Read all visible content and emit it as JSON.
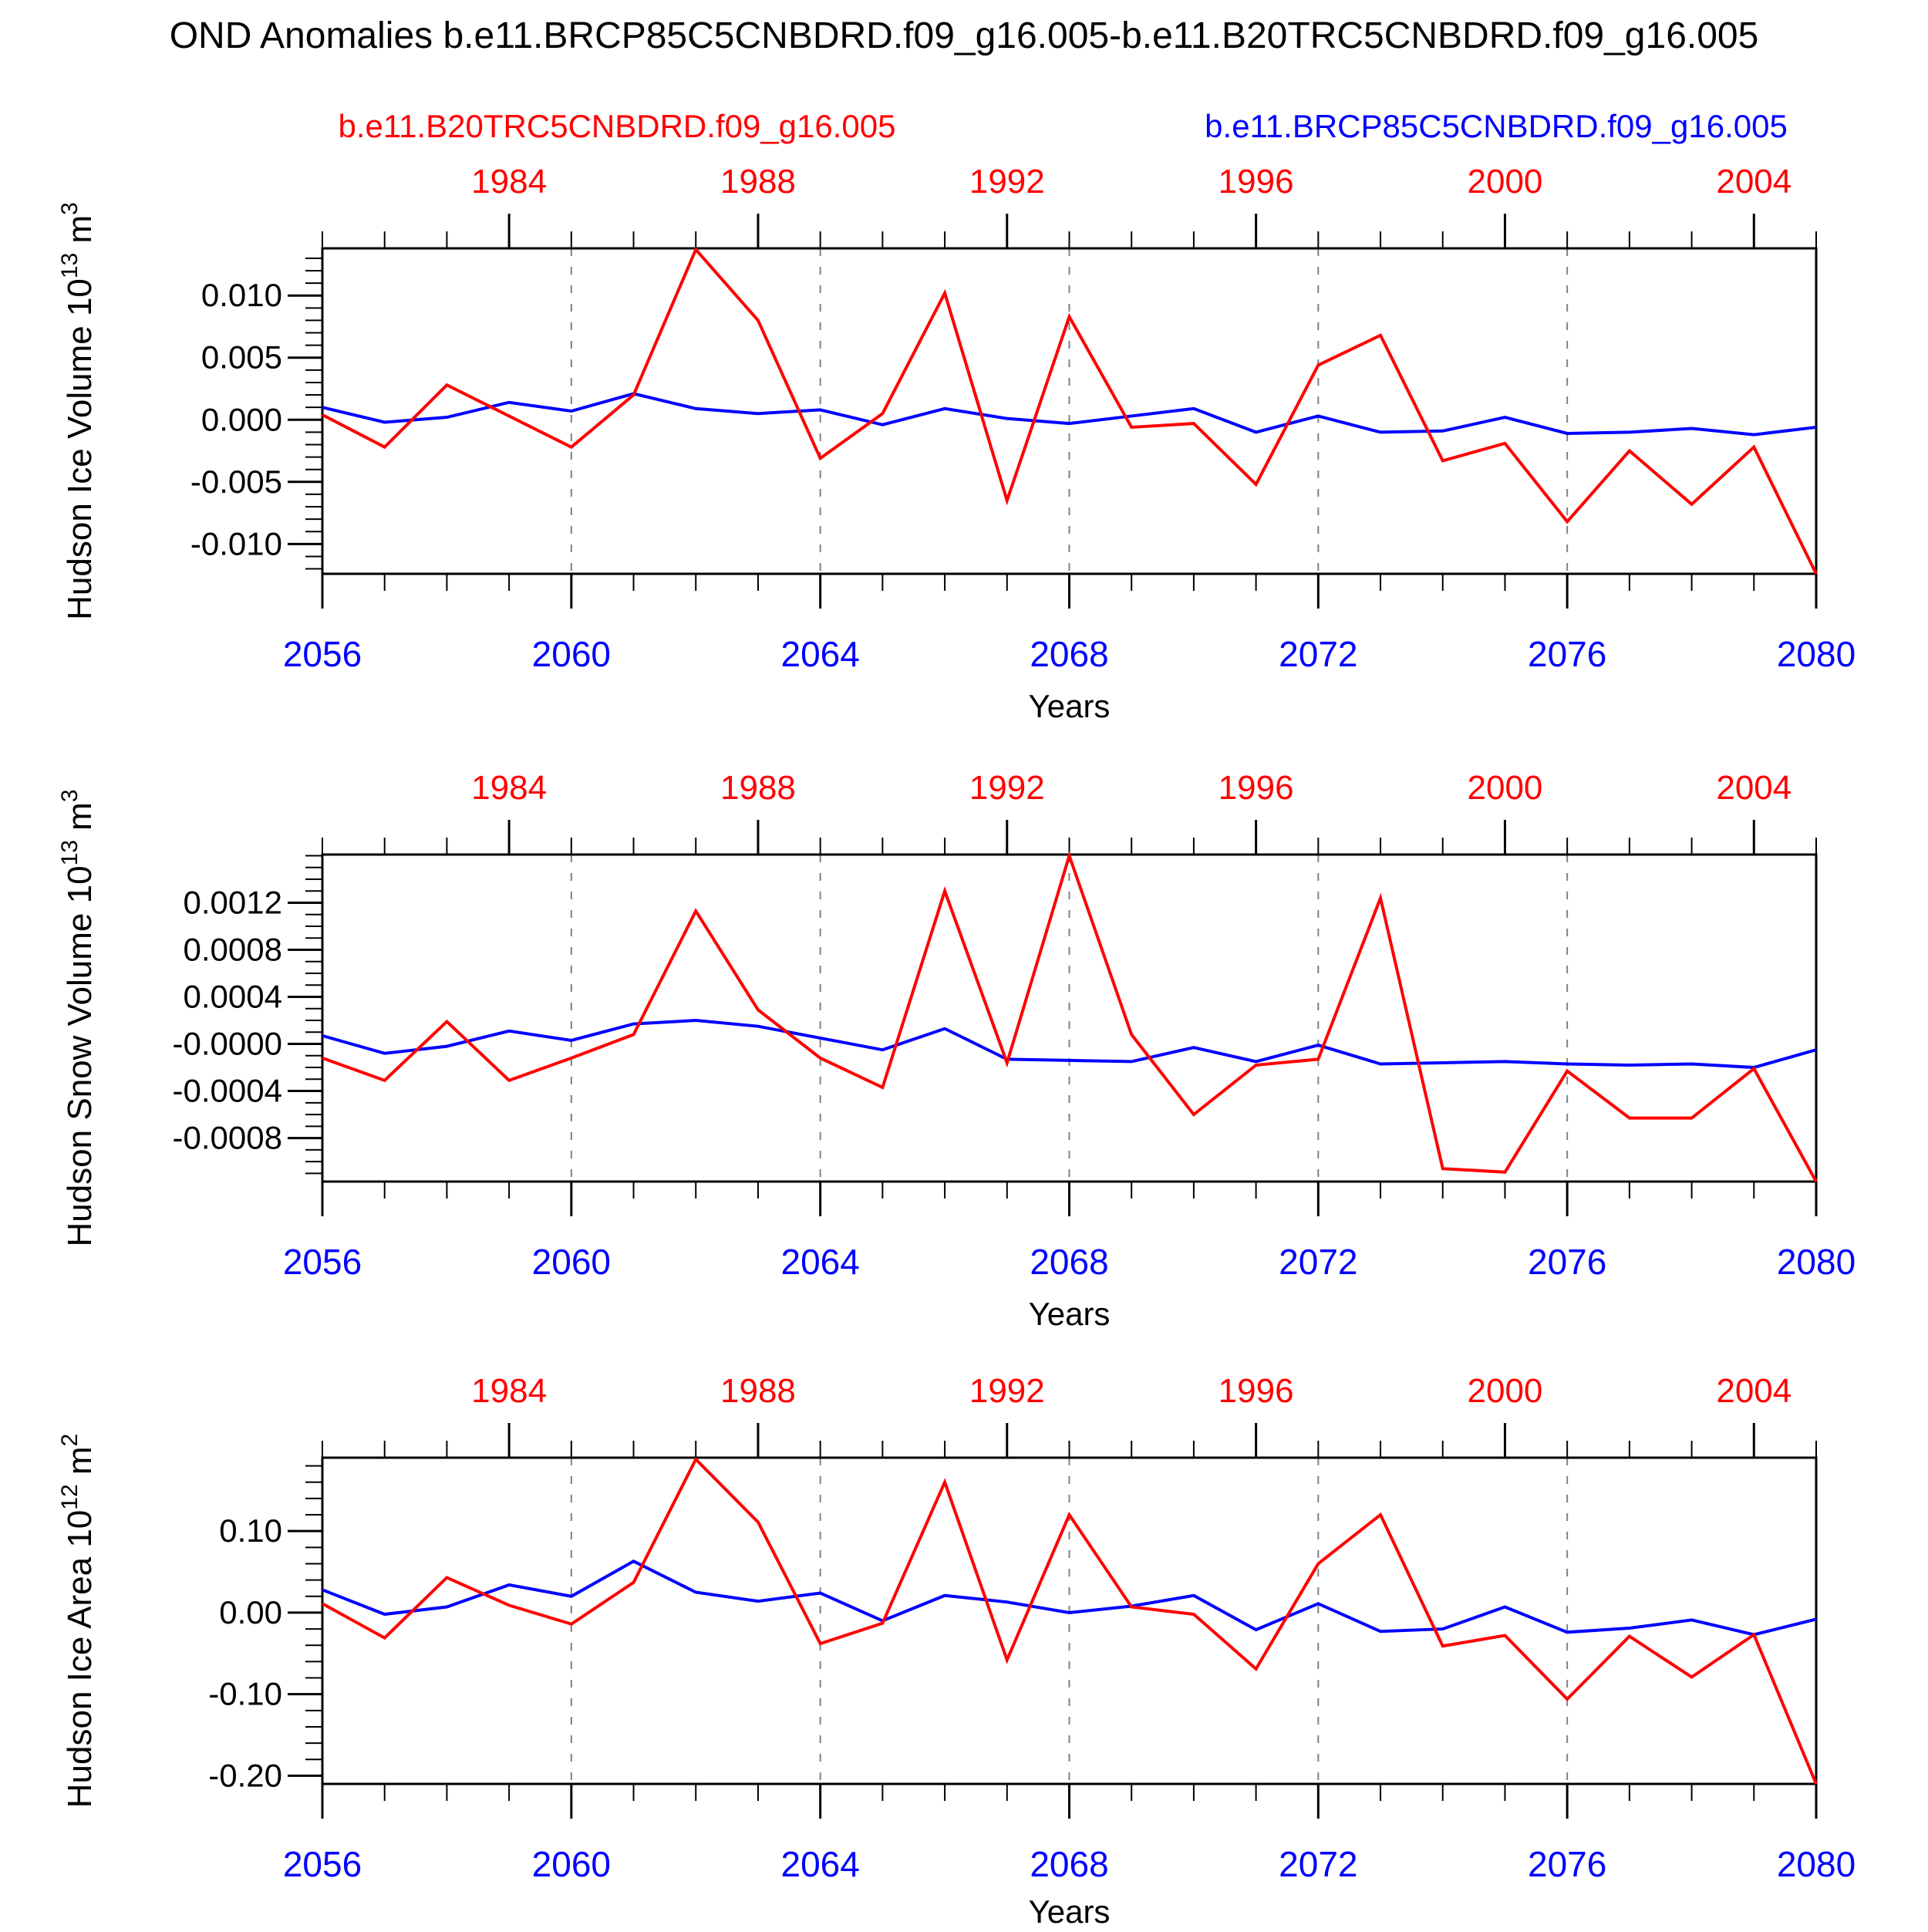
{
  "title": "OND Anomalies b.e11.BRCP85C5CNBDRD.f09_g16.005-b.e11.B20TRC5CNBDRD.f09_g16.005",
  "legend": {
    "entries": [
      {
        "label": "b.e11.B20TRC5CNBDRD.f09_g16.005",
        "color": "#ff0000"
      },
      {
        "label": "b.e11.BRCP85C5CNBDRD.f09_g16.005",
        "color": "#0000ff"
      }
    ]
  },
  "xlabel": "Years",
  "colors": {
    "red_series": "#ff0000",
    "blue_series": "#0000ff",
    "axis": "#000000",
    "gridline": "#808080",
    "top_axis_labels": "#ff0000",
    "bottom_axis_labels": "#0000ff"
  },
  "x_axis": {
    "years": [
      2056,
      2057,
      2058,
      2059,
      2060,
      2061,
      2062,
      2063,
      2064,
      2065,
      2066,
      2067,
      2068,
      2069,
      2070,
      2071,
      2072,
      2073,
      2074,
      2075,
      2076,
      2077,
      2078,
      2079,
      2080
    ],
    "bottom_tick_labels": [
      "2056",
      "2060",
      "2064",
      "2068",
      "2072",
      "2076",
      "2080"
    ],
    "bottom_tick_years": [
      2056,
      2060,
      2064,
      2068,
      2072,
      2076,
      2080
    ],
    "top_tick_labels": [
      "1984",
      "1988",
      "1992",
      "1996",
      "2000",
      "2004"
    ],
    "top_tick_years": [
      2059,
      2063,
      2067,
      2071,
      2075,
      2079
    ],
    "gridline_years": [
      2060,
      2064,
      2068,
      2072,
      2076
    ]
  },
  "chart_data": [
    {
      "type": "line",
      "name": "hudson-ice-volume",
      "ylabel_parts": [
        {
          "t": "Hudson Ice Volume 10",
          "sup": false
        },
        {
          "t": "13",
          "sup": true
        },
        {
          "t": " m",
          "sup": false
        },
        {
          "t": "3",
          "sup": true
        }
      ],
      "ylim": [
        -0.0124,
        0.0138
      ],
      "ytick_labels": [
        "0.010",
        "0.005",
        "0.000",
        "-0.005",
        "-0.010"
      ],
      "ytick_values": [
        0.01,
        0.005,
        0.0,
        -0.005,
        -0.01
      ],
      "minor_step": 0.001,
      "x": [
        2056,
        2057,
        2058,
        2059,
        2060,
        2061,
        2062,
        2063,
        2064,
        2065,
        2066,
        2067,
        2068,
        2069,
        2070,
        2071,
        2072,
        2073,
        2074,
        2075,
        2076,
        2077,
        2078,
        2079,
        2080
      ],
      "series": [
        {
          "name": "b.e11.B20TRC5CNBDRD.f09_g16.005",
          "color": "#ff0000",
          "values": [
            0.0004,
            -0.0022,
            0.0028,
            0.0003,
            -0.0022,
            0.002,
            0.0137,
            0.008,
            -0.0031,
            0.0005,
            0.0102,
            -0.0065,
            0.0083,
            -0.0006,
            -0.0003,
            -0.0052,
            0.0044,
            0.0068,
            -0.0033,
            -0.0019,
            -0.0082,
            -0.0025,
            -0.0068,
            -0.0022,
            -0.0124
          ]
        },
        {
          "name": "b.e11.BRCP85C5CNBDRD.f09_g16.005",
          "color": "#0000ff",
          "values": [
            0.001,
            -0.0002,
            0.0002,
            0.0014,
            0.0007,
            0.0021,
            0.0009,
            0.0005,
            0.0008,
            -0.0004,
            0.0009,
            0.0001,
            -0.0003,
            0.0003,
            0.0009,
            -0.001,
            0.0003,
            -0.001,
            -0.0009,
            0.0002,
            -0.0011,
            -0.001,
            -0.0007,
            -0.0012,
            -0.0006
          ]
        }
      ]
    },
    {
      "type": "line",
      "name": "hudson-snow-volume",
      "ylabel_parts": [
        {
          "t": "Hudson Snow Volume 10",
          "sup": false
        },
        {
          "t": "13",
          "sup": true
        },
        {
          "t": " m",
          "sup": false
        },
        {
          "t": "3",
          "sup": true
        }
      ],
      "ylim": [
        -0.00117,
        0.00161
      ],
      "ytick_labels": [
        "0.0012",
        "0.0008",
        "0.0004",
        "-0.0000",
        "-0.0004",
        "-0.0008"
      ],
      "ytick_values": [
        0.0012,
        0.0008,
        0.0004,
        0.0,
        -0.0004,
        -0.0008
      ],
      "minor_step": 0.0001,
      "x": [
        2056,
        2057,
        2058,
        2059,
        2060,
        2061,
        2062,
        2063,
        2064,
        2065,
        2066,
        2067,
        2068,
        2069,
        2070,
        2071,
        2072,
        2073,
        2074,
        2075,
        2076,
        2077,
        2078,
        2079,
        2080
      ],
      "series": [
        {
          "name": "b.e11.B20TRC5CNBDRD.f09_g16.005",
          "color": "#ff0000",
          "values": [
            -0.00012,
            -0.00031,
            0.00019,
            -0.00031,
            -0.00012,
            8e-05,
            0.00113,
            0.00029,
            -0.00012,
            -0.00037,
            0.0013,
            -0.00016,
            0.0016,
            8e-05,
            -0.0006,
            -0.00018,
            -0.00013,
            0.00124,
            -0.00106,
            -0.00109,
            -0.00023,
            -0.00063,
            -0.00063,
            -0.00021,
            -0.00117
          ]
        },
        {
          "name": "b.e11.BRCP85C5CNBDRD.f09_g16.005",
          "color": "#0000ff",
          "values": [
            7e-05,
            -8e-05,
            -2e-05,
            0.00011,
            3e-05,
            0.00017,
            0.0002,
            0.00015,
            5e-05,
            -5e-05,
            0.00013,
            -0.00013,
            -0.00014,
            -0.00015,
            -3e-05,
            -0.00015,
            -1e-05,
            -0.00017,
            -0.00016,
            -0.00015,
            -0.00017,
            -0.00018,
            -0.00017,
            -0.0002,
            -5e-05
          ]
        }
      ]
    },
    {
      "type": "line",
      "name": "hudson-ice-area",
      "ylabel_parts": [
        {
          "t": "Hudson Ice Area 10",
          "sup": false
        },
        {
          "t": "12",
          "sup": true
        },
        {
          "t": " m",
          "sup": false
        },
        {
          "t": "2",
          "sup": true
        }
      ],
      "ylim": [
        -0.21,
        0.19
      ],
      "ytick_labels": [
        "0.10",
        "0.00",
        "-0.10",
        "-0.20"
      ],
      "ytick_values": [
        0.1,
        0.0,
        -0.1,
        -0.2
      ],
      "minor_step": 0.02,
      "x": [
        2056,
        2057,
        2058,
        2059,
        2060,
        2061,
        2062,
        2063,
        2064,
        2065,
        2066,
        2067,
        2068,
        2069,
        2070,
        2071,
        2072,
        2073,
        2074,
        2075,
        2076,
        2077,
        2078,
        2079,
        2080
      ],
      "series": [
        {
          "name": "b.e11.B20TRC5CNBDRD.f09_g16.005",
          "color": "#ff0000",
          "values": [
            0.011,
            -0.031,
            0.043,
            0.009,
            -0.014,
            0.037,
            0.188,
            0.111,
            -0.038,
            -0.013,
            0.16,
            -0.058,
            0.12,
            0.007,
            -0.002,
            -0.069,
            0.06,
            0.12,
            -0.041,
            -0.028,
            -0.106,
            -0.029,
            -0.079,
            -0.027,
            -0.21
          ]
        },
        {
          "name": "b.e11.BRCP85C5CNBDRD.f09_g16.005",
          "color": "#0000ff",
          "values": [
            0.028,
            -0.002,
            0.007,
            0.034,
            0.02,
            0.063,
            0.025,
            0.014,
            0.024,
            -0.01,
            0.021,
            0.013,
            0.0,
            0.008,
            0.021,
            -0.021,
            0.011,
            -0.023,
            -0.02,
            0.007,
            -0.024,
            -0.019,
            -0.009,
            -0.027,
            -0.008
          ]
        }
      ]
    }
  ]
}
